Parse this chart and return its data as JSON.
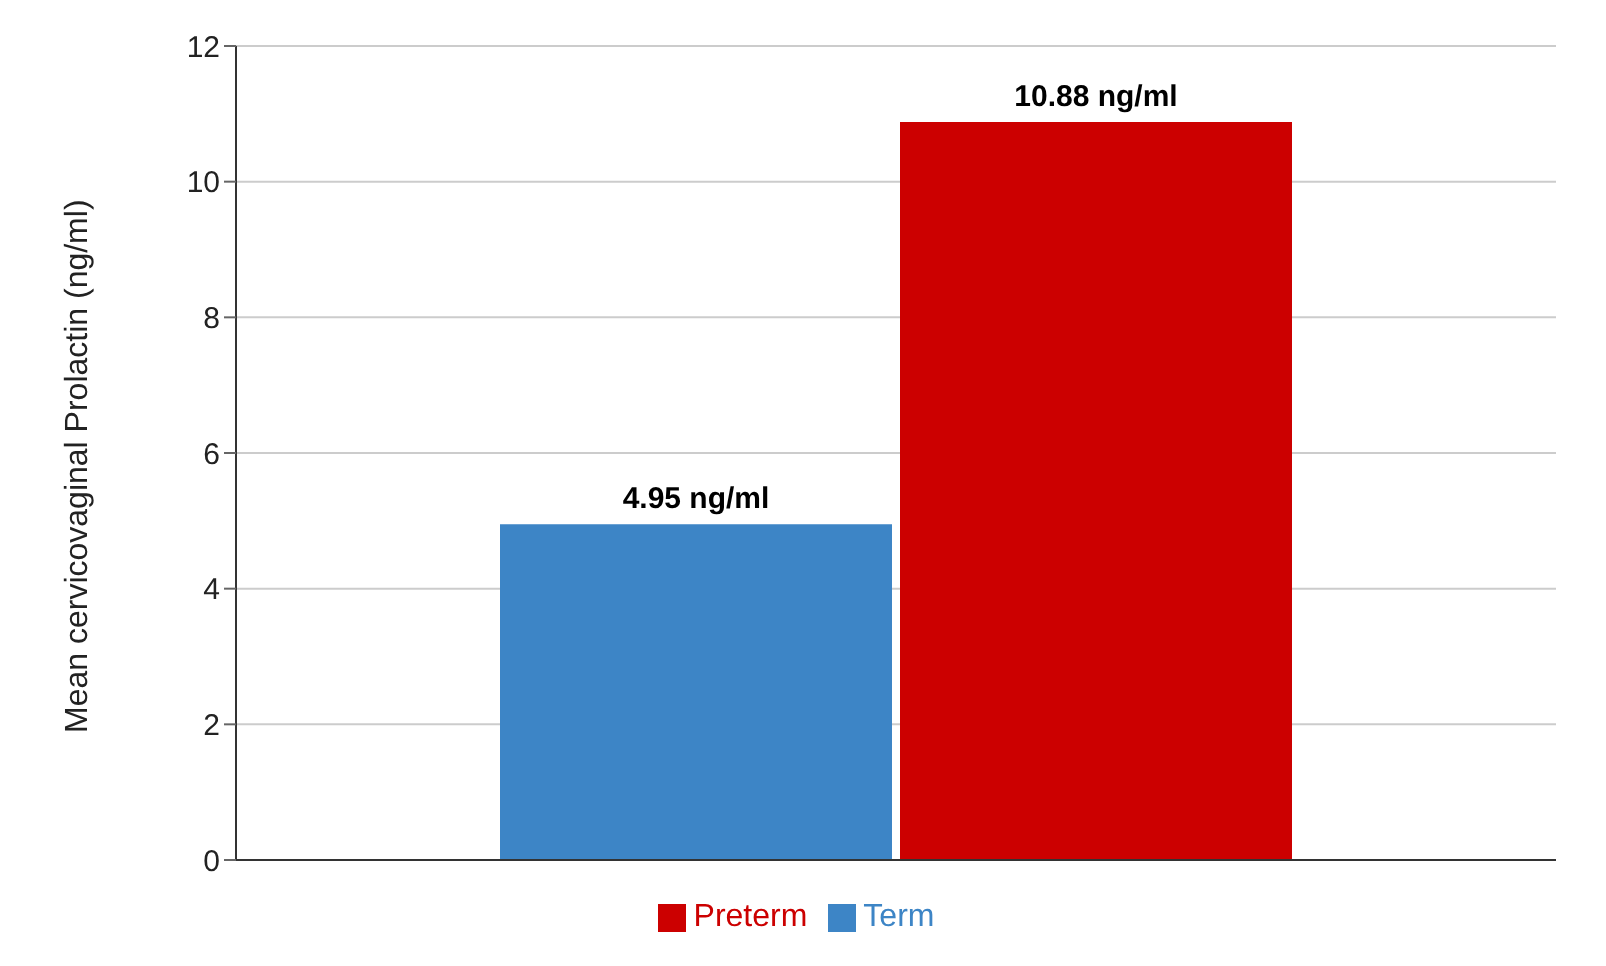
{
  "chart_data": {
    "type": "bar",
    "ylabel": "Mean cervicovaginal Prolactin (ng/ml)",
    "categories": [
      null
    ],
    "series": [
      {
        "name": "Term",
        "color": "#3d85c6",
        "values": [
          4.95
        ],
        "value_labels": [
          "4.95 ng/ml"
        ]
      },
      {
        "name": "Preterm",
        "color": "#cc0000",
        "values": [
          10.88
        ],
        "value_labels": [
          "10.88 ng/ml"
        ]
      }
    ],
    "ylim": [
      0,
      12
    ],
    "yticks": [
      0,
      2,
      4,
      6,
      8,
      10,
      12
    ],
    "grid": "y",
    "legend": "bottom"
  }
}
